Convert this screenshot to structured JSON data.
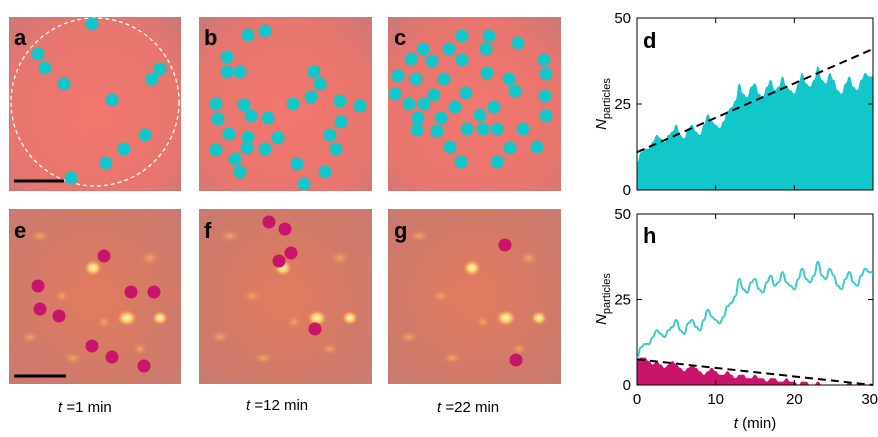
{
  "panel_labels": {
    "a": "a",
    "b": "b",
    "c": "c",
    "d": "d",
    "e": "e",
    "f": "f",
    "g": "g",
    "h": "h"
  },
  "captions": [
    {
      "t": "t",
      "rest": " =1 min"
    },
    {
      "t": "t",
      "rest": " =12 min"
    },
    {
      "t": "t",
      "rest": " =22 min"
    }
  ],
  "colors": {
    "cyan": "#12C7C9",
    "magenta": "#C8146B",
    "cyan_line": "#3CCBCB"
  },
  "chart_data": [
    {
      "type": "area",
      "panel": "d",
      "ylabel_main": "N",
      "ylabel_sub": "particles",
      "xlim": [
        0,
        30
      ],
      "ylim": [
        0,
        50
      ],
      "yticks": [
        "0",
        "25",
        "50"
      ],
      "x": [
        0,
        0.5,
        1,
        1.5,
        2,
        2.5,
        3,
        3.5,
        4,
        4.5,
        5,
        5.5,
        6,
        6.5,
        7,
        7.5,
        8,
        8.5,
        9,
        9.5,
        10,
        10.5,
        11,
        11.5,
        12,
        12.5,
        13,
        13.5,
        14,
        14.5,
        15,
        15.5,
        16,
        16.5,
        17,
        17.5,
        18,
        18.5,
        19,
        19.5,
        20,
        20.5,
        21,
        21.5,
        22,
        22.5,
        23,
        23.5,
        24,
        24.5,
        25,
        25.5,
        26,
        26.5,
        27,
        27.5,
        28,
        28.5,
        29,
        29.5,
        30
      ],
      "series": [
        {
          "values": [
            8,
            11,
            12,
            12,
            14,
            16,
            15,
            14,
            16,
            17,
            19,
            16,
            15,
            18,
            19,
            17,
            16,
            19,
            22,
            20,
            19,
            18,
            20,
            23,
            24,
            26,
            31,
            28,
            27,
            30,
            31,
            28,
            27,
            30,
            32,
            29,
            30,
            33,
            30,
            29,
            28,
            31,
            34,
            31,
            30,
            32,
            36,
            32,
            31,
            34,
            32,
            29,
            28,
            31,
            33,
            30,
            29,
            32,
            34,
            33,
            33
          ]
        }
      ],
      "trend": [
        11,
        41
      ]
    },
    {
      "type": "line",
      "panel": "h",
      "ylabel_main": "N",
      "ylabel_sub": "particles",
      "xlabel_main": "t",
      "xlabel_rest": " (min)",
      "xlim": [
        0,
        30
      ],
      "ylim": [
        0,
        50
      ],
      "yticks": [
        "0",
        "25",
        "50"
      ],
      "xticks": [
        "0",
        "10",
        "20",
        "30"
      ],
      "x": [
        0,
        0.5,
        1,
        1.5,
        2,
        2.5,
        3,
        3.5,
        4,
        4.5,
        5,
        5.5,
        6,
        6.5,
        7,
        7.5,
        8,
        8.5,
        9,
        9.5,
        10,
        10.5,
        11,
        11.5,
        12,
        12.5,
        13,
        13.5,
        14,
        14.5,
        15,
        15.5,
        16,
        16.5,
        17,
        17.5,
        18,
        18.5,
        19,
        19.5,
        20,
        20.5,
        21,
        21.5,
        22,
        22.5,
        23,
        23.5,
        24,
        24.5,
        25,
        25.5,
        26,
        26.5,
        27,
        27.5,
        28,
        28.5,
        29,
        29.5,
        30
      ],
      "series": [
        {
          "values": [
            8,
            11,
            12,
            12,
            14,
            16,
            15,
            14,
            16,
            17,
            19,
            16,
            15,
            18,
            19,
            17,
            16,
            19,
            22,
            20,
            19,
            18,
            20,
            23,
            24,
            26,
            31,
            28,
            27,
            30,
            31,
            28,
            27,
            30,
            32,
            29,
            30,
            33,
            30,
            29,
            28,
            31,
            34,
            31,
            30,
            32,
            36,
            32,
            31,
            34,
            32,
            29,
            28,
            31,
            33,
            30,
            29,
            32,
            34,
            33,
            33
          ]
        },
        {
          "values": [
            7,
            8,
            8,
            7,
            6,
            7,
            6,
            5,
            6,
            7,
            6,
            5,
            4,
            5,
            6,
            5,
            4,
            3,
            4,
            5,
            4,
            3,
            3,
            4,
            3,
            2,
            3,
            3,
            2,
            2,
            3,
            2,
            2,
            1,
            2,
            2,
            1,
            1,
            2,
            1,
            1,
            0,
            1,
            1,
            0,
            0,
            1,
            0,
            0,
            0,
            0,
            0,
            0,
            0,
            1,
            0,
            0,
            0,
            0,
            0,
            0
          ]
        }
      ],
      "trend": [
        7.5,
        0
      ]
    }
  ]
}
